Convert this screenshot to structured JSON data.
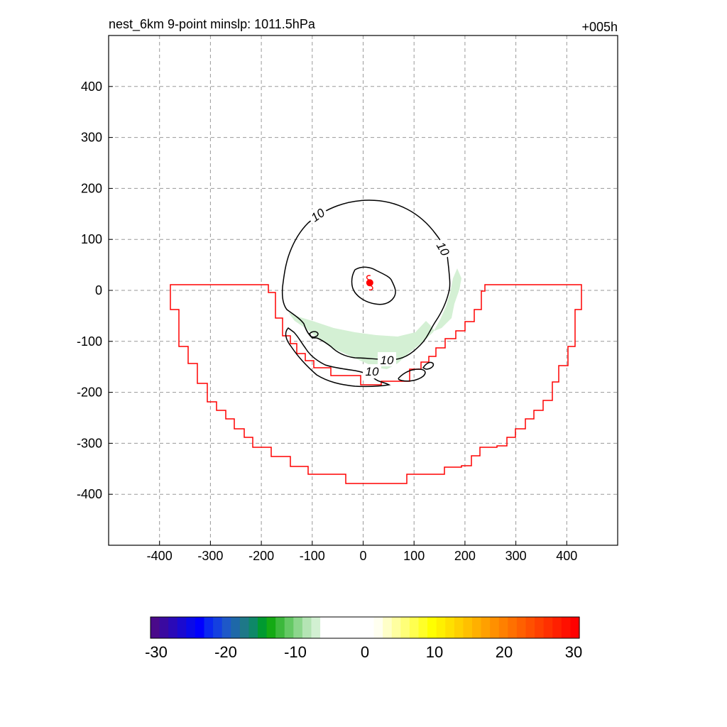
{
  "chart_data": {
    "type": "contour",
    "title_left": "nest_6km  9-point minslp: 1011.5hPa",
    "title_right": "+005h",
    "xlim": [
      -500,
      500
    ],
    "ylim": [
      -500,
      500
    ],
    "x_ticks": [
      -400,
      -300,
      -200,
      -100,
      0,
      100,
      200,
      300,
      400
    ],
    "y_ticks": [
      400,
      300,
      200,
      100,
      0,
      -100,
      -200,
      -300,
      -400
    ],
    "x_tick_labels": [
      "-400",
      "-300",
      "-200",
      "-100",
      "0",
      "100",
      "200",
      "300",
      "400"
    ],
    "y_tick_labels": [
      "400",
      "300",
      "200",
      "100",
      "0",
      "-100",
      "-200",
      "-300",
      "-400"
    ],
    "grid": true,
    "storm_center": {
      "x": 13,
      "y": 15,
      "color": "#ff0000"
    },
    "contour_labels": [
      "10",
      "10",
      "10",
      "10"
    ],
    "contour_color": "#000000",
    "boundary_color": "#ff0000",
    "shading_color": "#d4f0d4",
    "colorbar": {
      "min": -30,
      "max": 30,
      "tick_labels": [
        "-30",
        "-20",
        "-10",
        "0",
        "10",
        "20",
        "30"
      ],
      "colors": [
        "#4a0a8a",
        "#3a0aa0",
        "#2a0ab8",
        "#1a0ad0",
        "#0a0ae8",
        "#0000ff",
        "#0a28f0",
        "#1440e0",
        "#1e58c8",
        "#1e68a8",
        "#1e7888",
        "#0e8868",
        "#009a30",
        "#14aa14",
        "#3cb83c",
        "#64c864",
        "#8cd68c",
        "#b4e4b4",
        "#d2f0d2",
        "#ffffff",
        "#ffffff",
        "#ffffff",
        "#ffffff",
        "#ffffff",
        "#ffffff",
        "#fffff0",
        "#ffffc8",
        "#ffffa0",
        "#ffff78",
        "#ffff50",
        "#ffff28",
        "#ffff00",
        "#fff000",
        "#ffe000",
        "#ffd000",
        "#ffc000",
        "#ffb000",
        "#ffa000",
        "#ff9000",
        "#ff8000",
        "#ff7000",
        "#ff6000",
        "#ff5000",
        "#ff4000",
        "#ff3000",
        "#ff2000",
        "#ff1000",
        "#ff0000"
      ]
    }
  }
}
